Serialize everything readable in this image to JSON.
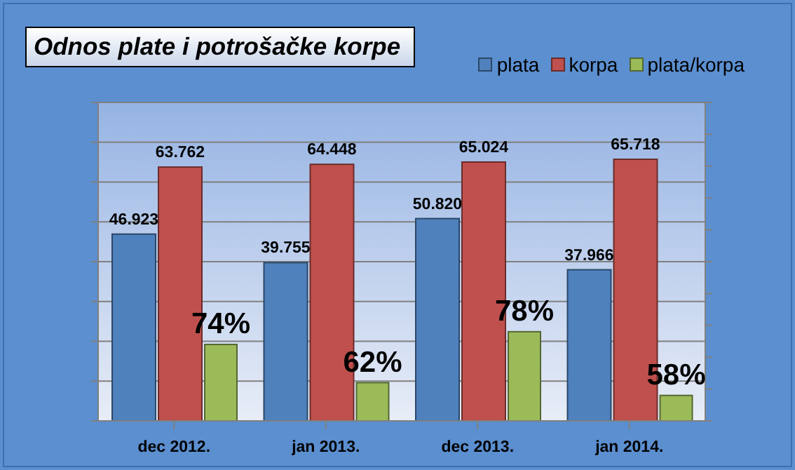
{
  "chart_data": {
    "type": "bar",
    "title": "Odnos plate i potrošačke korpe",
    "categories": [
      "dec 2012.",
      "jan 2013.",
      "dec 2013.",
      "jan 2014."
    ],
    "series": [
      {
        "name": "plata",
        "color": "#4f81bd",
        "values": [
          46.923,
          39.755,
          50.82,
          37.966
        ],
        "value_labels": [
          "46.923",
          "39.755",
          "50.820",
          "37.966"
        ]
      },
      {
        "name": "korpa",
        "color": "#c0504d",
        "values": [
          63.762,
          64.448,
          65.024,
          65.718
        ],
        "value_labels": [
          "63.762",
          "64.448",
          "65.024",
          "65.718"
        ]
      },
      {
        "name": "plata/korpa",
        "color": "#9bbb59",
        "axis": "y2",
        "values": [
          74,
          62,
          78,
          58
        ],
        "value_labels": [
          "74%",
          "62%",
          "78%",
          "58%"
        ]
      }
    ],
    "ylim": [
      0,
      80
    ],
    "yticks": [
      {
        "value": 0,
        "label": null
      },
      {
        "value": 10,
        "label": null
      },
      {
        "value": 20,
        "label": null
      },
      {
        "value": 30,
        "label": null
      },
      {
        "value": 40,
        "label": null
      },
      {
        "value": 50,
        "label": null
      },
      {
        "value": 60,
        "label": null
      },
      {
        "value": 70,
        "label": null
      },
      {
        "value": 80,
        "label": null
      }
    ],
    "y2lim": [
      50,
      150
    ],
    "y2ticks": [
      {
        "value": 50,
        "label": null
      },
      {
        "value": 60,
        "label": null
      },
      {
        "value": 70,
        "label": null
      },
      {
        "value": 80,
        "label": null
      },
      {
        "value": 90,
        "label": null
      },
      {
        "value": 100,
        "label": null
      },
      {
        "value": 110,
        "label": null
      },
      {
        "value": 120,
        "label": null
      },
      {
        "value": 130,
        "label": null
      },
      {
        "value": 140,
        "label": null
      },
      {
        "value": 150,
        "label": null
      }
    ],
    "grid": "y",
    "legend": "top right",
    "tick_labels": "x"
  }
}
